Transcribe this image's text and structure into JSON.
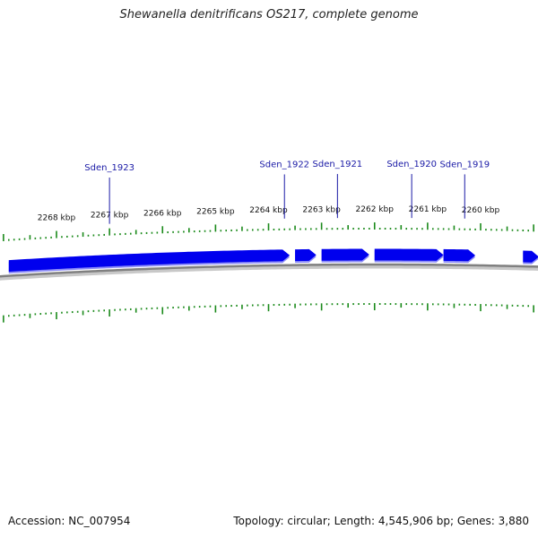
{
  "title": "Shewanella denitrificans OS217, complete genome",
  "footer": {
    "accession": "Accession: NC_007954",
    "summary": "Topology: circular; Length: 4,545,906 bp; Genes: 3,880"
  },
  "colors": {
    "gene": "#0000ee",
    "gene_shadow": "#7a7af0",
    "tick": "#1a8a1a",
    "backbone": "#808080",
    "label": "#1a1aa6"
  },
  "chart_data": {
    "type": "genome-map",
    "unit": "kbp",
    "tick_labels": [
      {
        "kbp": 2268,
        "text": "2268 kbp"
      },
      {
        "kbp": 2267,
        "text": "2267 kbp"
      },
      {
        "kbp": 2266,
        "text": "2266 kbp"
      },
      {
        "kbp": 2265,
        "text": "2265 kbp"
      },
      {
        "kbp": 2264,
        "text": "2264 kbp"
      },
      {
        "kbp": 2263,
        "text": "2263 kbp"
      },
      {
        "kbp": 2262,
        "text": "2262 kbp"
      },
      {
        "kbp": 2261,
        "text": "2261 kbp"
      },
      {
        "kbp": 2260,
        "text": "2260 kbp"
      }
    ],
    "genes": [
      {
        "name": "Sden_1923",
        "start": 2263.6,
        "end": 2268.9,
        "label_pos": 2267.0
      },
      {
        "name": "Sden_1922",
        "start": 2263.1,
        "end": 2263.5,
        "label_pos": 2263.7
      },
      {
        "name": "Sden_1921",
        "start": 2262.1,
        "end": 2263.0,
        "label_pos": 2262.7
      },
      {
        "name": "Sden_1920",
        "start": 2260.7,
        "end": 2262.0,
        "label_pos": 2261.3
      },
      {
        "name": "Sden_1919",
        "start": 2260.1,
        "end": 2260.7,
        "label_pos": 2260.3
      },
      {
        "name": "",
        "start": 2258.9,
        "end": 2259.2,
        "label_pos": null
      }
    ]
  }
}
